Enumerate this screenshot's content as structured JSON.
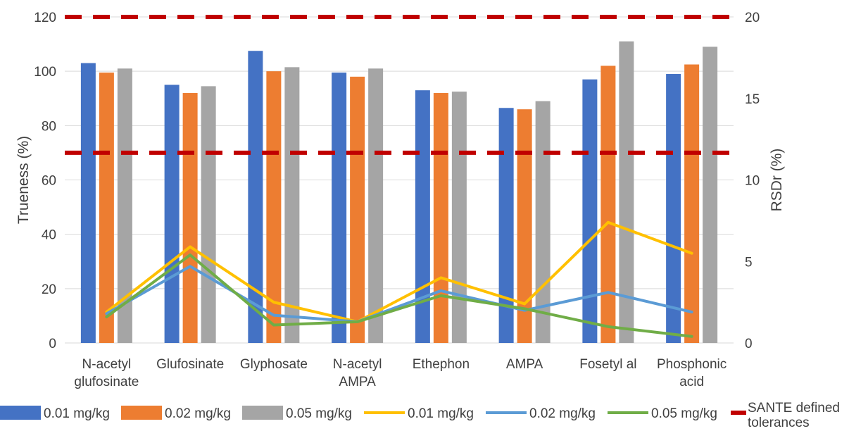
{
  "chart_data": {
    "type": "bar",
    "categories": [
      [
        "N-acetyl",
        "glufosinate"
      ],
      [
        "Glufosinate"
      ],
      [
        "Glyphosate"
      ],
      [
        "N-acetyl",
        "AMPA"
      ],
      [
        "Ethephon"
      ],
      [
        "AMPA"
      ],
      [
        "Fosetyl al"
      ],
      [
        "Phosphonic",
        "acid"
      ]
    ],
    "ylabel": "Trueness (%)",
    "y2label": "RSDr (%)",
    "ylim": [
      0,
      120
    ],
    "yticks": [
      0,
      20,
      40,
      60,
      80,
      100,
      120
    ],
    "y2lim": [
      0,
      20
    ],
    "y2ticks": [
      0,
      5,
      10,
      15,
      20
    ],
    "grid": true,
    "legend_position": "bottom",
    "bar_series": [
      {
        "name": "0.01 mg/kg",
        "color": "#4472C4",
        "values": [
          103,
          95,
          107.5,
          99.5,
          93,
          86.5,
          97,
          99
        ]
      },
      {
        "name": "0.02 mg/kg",
        "color": "#ED7D31",
        "values": [
          99.5,
          92,
          100,
          98,
          92,
          86,
          102,
          102.5
        ]
      },
      {
        "name": "0.05 mg/kg",
        "color": "#A5A5A5",
        "values": [
          101,
          94.5,
          101.5,
          101,
          92.5,
          89,
          111,
          109
        ]
      }
    ],
    "line_series": [
      {
        "name": "0.01 mg/kg",
        "color": "#FFC000",
        "values": [
          1.9,
          5.9,
          2.5,
          1.3,
          4.0,
          2.4,
          7.4,
          5.5
        ]
      },
      {
        "name": "0.02 mg/kg",
        "color": "#5B9BD5",
        "values": [
          1.8,
          4.7,
          1.7,
          1.3,
          3.2,
          2.0,
          3.1,
          1.9
        ]
      },
      {
        "name": "0.05 mg/kg",
        "color": "#70AD47",
        "values": [
          1.6,
          5.4,
          1.1,
          1.3,
          2.9,
          2.1,
          1.0,
          0.4
        ]
      }
    ],
    "reference_lines": {
      "name": "SANTE defined tolerances",
      "color": "#C00000",
      "trueness_values": [
        70,
        120
      ]
    }
  }
}
